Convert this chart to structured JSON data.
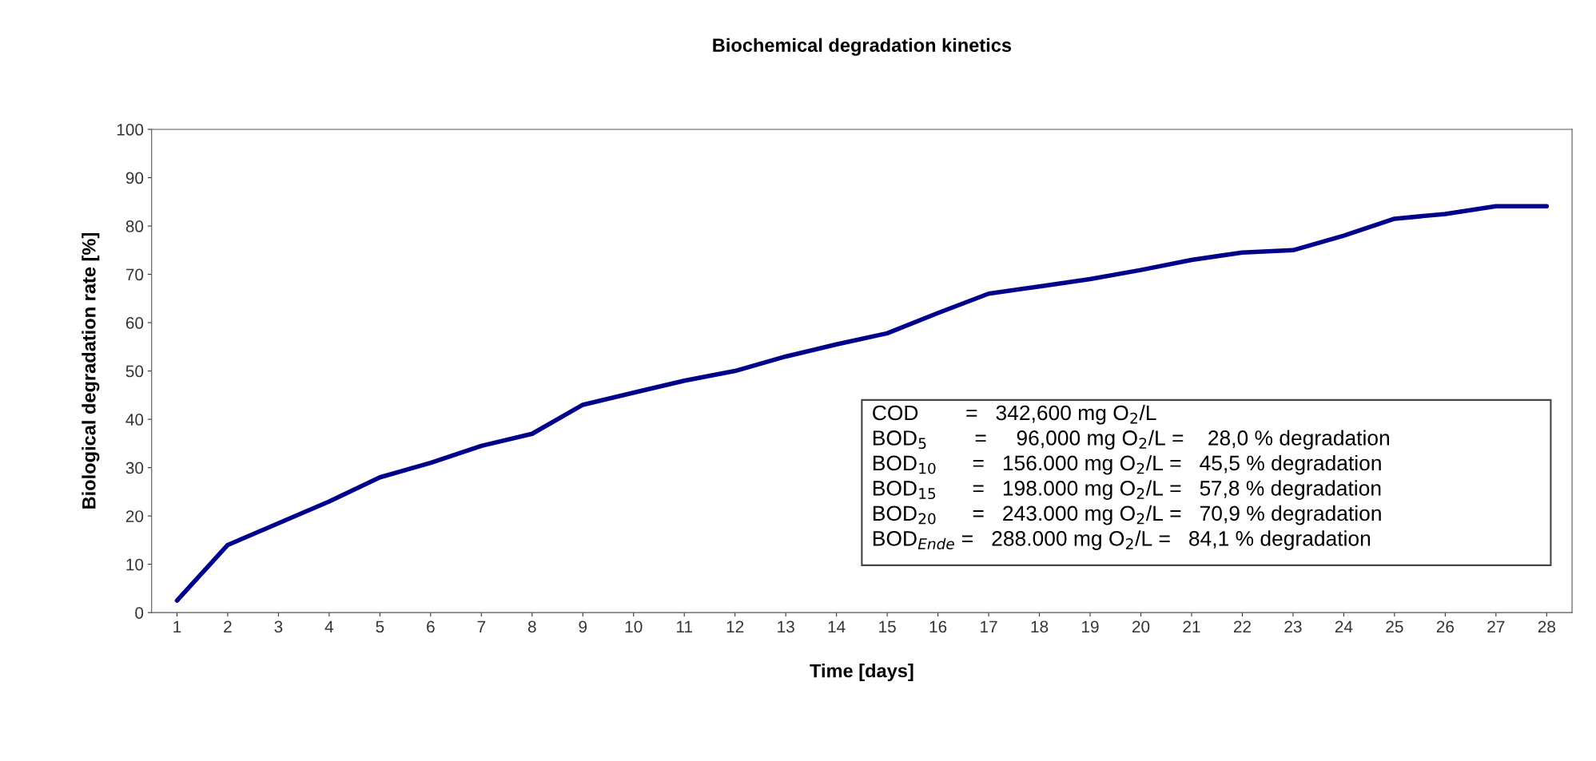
{
  "chart_data": {
    "type": "line",
    "title": "Biochemical degradation kinetics",
    "xlabel": "Time [days]",
    "ylabel": "Biological degradation rate [%]",
    "categories": [
      "1",
      "2",
      "3",
      "4",
      "5",
      "6",
      "7",
      "8",
      "9",
      "10",
      "11",
      "12",
      "13",
      "14",
      "15",
      "16",
      "17",
      "18",
      "19",
      "20",
      "21",
      "22",
      "23",
      "24",
      "25",
      "26",
      "27",
      "28"
    ],
    "series": [
      {
        "color": "#00008b",
        "values": [
          2.5,
          14,
          18.5,
          23,
          28,
          31,
          34.5,
          37,
          43,
          45.5,
          48,
          50,
          53,
          55.5,
          57.8,
          62,
          66,
          67.5,
          69,
          70.9,
          73,
          74.5,
          75,
          78,
          81.5,
          82.5,
          84.1,
          84.1
        ]
      }
    ],
    "ylim": [
      0,
      100
    ],
    "yticks": [
      0,
      10,
      20,
      30,
      40,
      50,
      60,
      70,
      80,
      90,
      100
    ],
    "grid": false,
    "legend": false,
    "marker": "none",
    "line_style": "solid",
    "annotations": [
      "COD        =   342,600 mg O$_{2}$/L",
      "BOD$_{5}$        =     96,000 mg O$_{2}$/L =    28,0 % degradation",
      "BOD$_{10}$      =   156.000 mg O$_{2}$/L =   45,5 % degradation",
      "BOD$_{15}$      =   198.000 mg O$_{2}$/L =   57,8 % degradation",
      "BOD$_{20}$      =   243.000 mg O$_{2}$/L =   70,9 % degradation",
      "BOD$_{Ende}$ =   288.000 mg O$_{2}$/L =   84,1 % degradation"
    ]
  }
}
